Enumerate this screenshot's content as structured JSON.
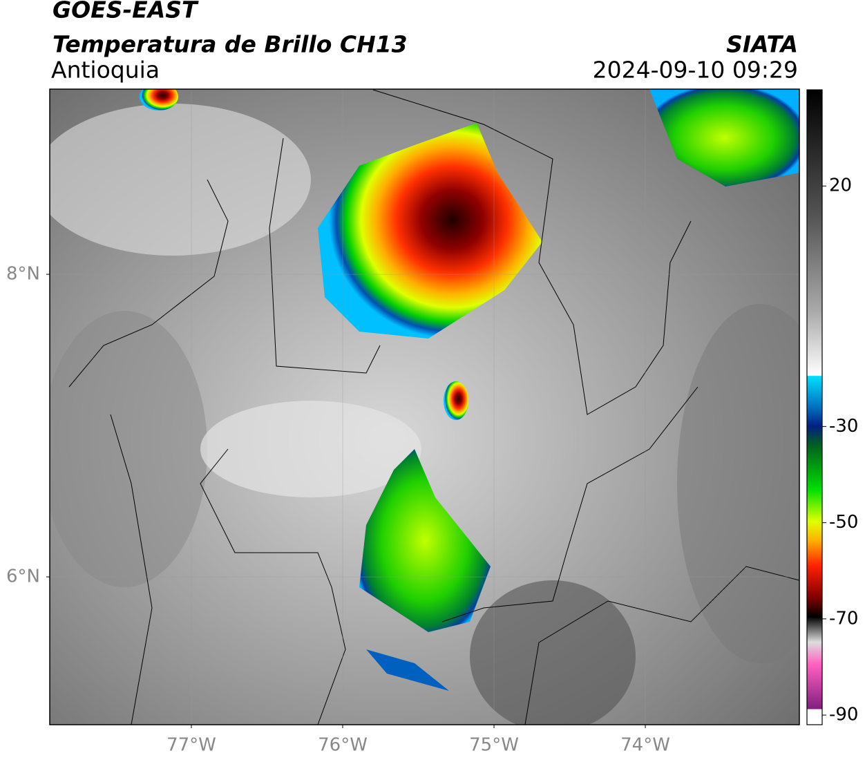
{
  "map": {
    "title": "GOES-EAST",
    "subtitle": "Temperatura de Brillo CH13",
    "source": "SIATA",
    "region": "Antioquia",
    "timestamp": "2024-09-10 09:29",
    "lonlim": [
      -77.936,
      -72.982
    ],
    "latlim": [
      5.023,
      9.224
    ],
    "lon_ticks": [
      {
        "value": -77,
        "label": "77°W"
      },
      {
        "value": -76,
        "label": "76°W"
      },
      {
        "value": -75,
        "label": "75°W"
      },
      {
        "value": -74,
        "label": "74°W"
      }
    ],
    "lat_ticks": [
      {
        "value": 8,
        "label": "8°N"
      },
      {
        "value": 6,
        "label": "6°N"
      }
    ],
    "colorbar": {
      "lim": [
        -92,
        40
      ],
      "ticks": [
        20,
        -30,
        -50,
        -70,
        -90
      ]
    }
  }
}
